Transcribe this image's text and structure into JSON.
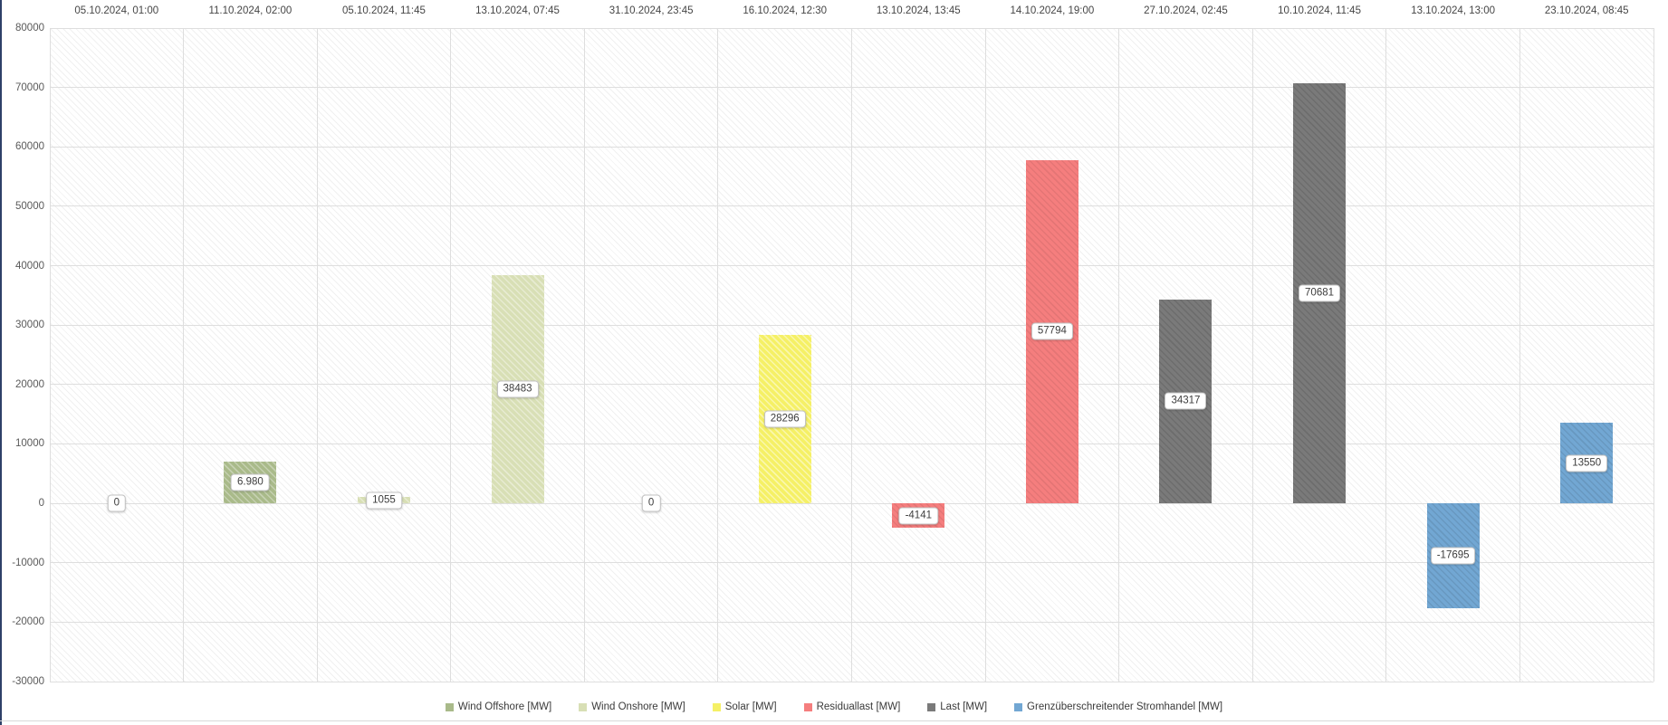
{
  "window": {
    "left_border_color": "#2e4068",
    "bottom_rule_color": "#d9d9d9"
  },
  "chart_data": {
    "type": "bar",
    "title": "",
    "xlabel": "",
    "ylabel": "",
    "ylim": [
      -30000,
      80000
    ],
    "ytick_step": 10000,
    "grid": true,
    "legend_position": "bottom",
    "categories": [
      "05.10.2024, 01:00",
      "11.10.2024, 02:00",
      "05.10.2024, 11:45",
      "13.10.2024, 07:45",
      "31.10.2024, 23:45",
      "16.10.2024, 12:30",
      "13.10.2024, 13:45",
      "14.10.2024, 19:00",
      "27.10.2024, 02:45",
      "10.10.2024, 11:45",
      "13.10.2024, 13:00",
      "23.10.2024, 08:45"
    ],
    "legend": [
      {
        "label": "Wind Offshore [MW]",
        "color": "#a9ba8a"
      },
      {
        "label": "Wind Onshore [MW]",
        "color": "#d8dfb5"
      },
      {
        "label": "Solar [MW]",
        "color": "#f5f066"
      },
      {
        "label": "Residuallast [MW]",
        "color": "#f57e7e"
      },
      {
        "label": "Last [MW]",
        "color": "#7a7a7a"
      },
      {
        "label": "Grenzüberschreitender Stromhandel [MW]",
        "color": "#72a7d3"
      }
    ],
    "points": [
      {
        "category": "05.10.2024, 01:00",
        "series": 0,
        "value": 0,
        "label": "0"
      },
      {
        "category": "11.10.2024, 02:00",
        "series": 0,
        "value": 6980,
        "label": "6.980"
      },
      {
        "category": "05.10.2024, 11:45",
        "series": 1,
        "value": 1055,
        "label": "1055"
      },
      {
        "category": "13.10.2024, 07:45",
        "series": 1,
        "value": 38483,
        "label": "38483"
      },
      {
        "category": "31.10.2024, 23:45",
        "series": 2,
        "value": 0,
        "label": "0"
      },
      {
        "category": "16.10.2024, 12:30",
        "series": 2,
        "value": 28296,
        "label": "28296"
      },
      {
        "category": "13.10.2024, 13:45",
        "series": 3,
        "value": -4141,
        "label": "-4141"
      },
      {
        "category": "14.10.2024, 19:00",
        "series": 3,
        "value": 57794,
        "label": "57794"
      },
      {
        "category": "27.10.2024, 02:45",
        "series": 4,
        "value": 34317,
        "label": "34317"
      },
      {
        "category": "10.10.2024, 11:45",
        "series": 4,
        "value": 70681,
        "label": "70681"
      },
      {
        "category": "13.10.2024, 13:00",
        "series": 5,
        "value": -17695,
        "label": "-17695"
      },
      {
        "category": "23.10.2024, 08:45",
        "series": 5,
        "value": 13550,
        "label": "13550"
      }
    ]
  }
}
